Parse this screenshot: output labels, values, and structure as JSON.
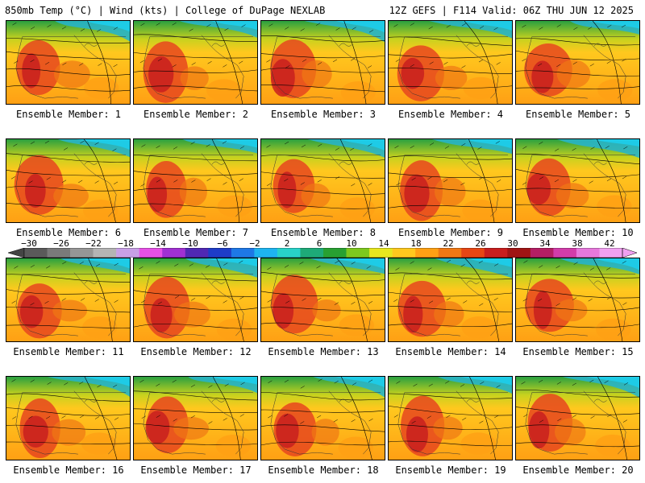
{
  "header": {
    "left_title": "850mb Temp (°C) | Wind (kts) | College of DuPage NEXLAB",
    "right_title": "12Z GEFS | F114 Valid: 06Z THU JUN 12 2025"
  },
  "panels": [
    {
      "label": "Ensemble Member: 1"
    },
    {
      "label": "Ensemble Member: 2"
    },
    {
      "label": "Ensemble Member: 3"
    },
    {
      "label": "Ensemble Member: 4"
    },
    {
      "label": "Ensemble Member: 5"
    },
    {
      "label": "Ensemble Member: 6"
    },
    {
      "label": "Ensemble Member: 7"
    },
    {
      "label": "Ensemble Member: 8"
    },
    {
      "label": "Ensemble Member: 9"
    },
    {
      "label": "Ensemble Member: 10"
    },
    {
      "label": "Ensemble Member: 11"
    },
    {
      "label": "Ensemble Member: 12"
    },
    {
      "label": "Ensemble Member: 13"
    },
    {
      "label": "Ensemble Member: 14"
    },
    {
      "label": "Ensemble Member: 15"
    },
    {
      "label": "Ensemble Member: 16"
    },
    {
      "label": "Ensemble Member: 17"
    },
    {
      "label": "Ensemble Member: 18"
    },
    {
      "label": "Ensemble Member: 19"
    },
    {
      "label": "Ensemble Member: 20"
    }
  ],
  "colorbar": {
    "tick_labels": [
      "−30",
      "−26",
      "−22",
      "−18",
      "−14",
      "−10",
      "−6",
      "−2",
      "2",
      "6",
      "10",
      "14",
      "18",
      "22",
      "26",
      "30",
      "34",
      "38",
      "42"
    ],
    "colors": [
      "#5a5a5a",
      "#7a7a7a",
      "#969696",
      "#b4b4b4",
      "#c8a0e6",
      "#e650e6",
      "#a030d2",
      "#5028b4",
      "#1e3cc8",
      "#1e78e6",
      "#1eb4f0",
      "#28d2c8",
      "#1eaa78",
      "#28a032",
      "#7dc81e",
      "#e6e61e",
      "#ffc81e",
      "#ffa014",
      "#f07814",
      "#e64614",
      "#c81e1e",
      "#a01414",
      "#b41e64",
      "#d23caa",
      "#e678dc",
      "#f0a0f0"
    ]
  }
}
